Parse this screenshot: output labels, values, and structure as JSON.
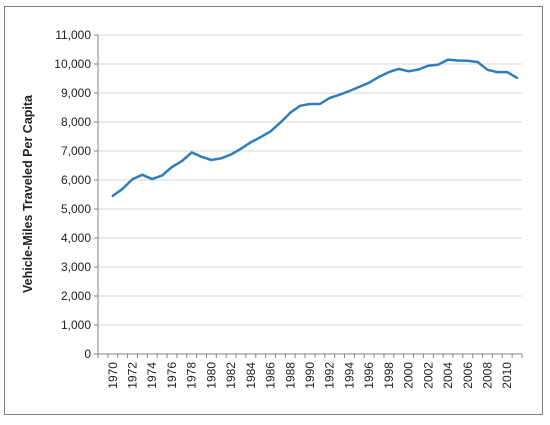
{
  "chart_data": {
    "type": "line",
    "title": "",
    "xlabel": "",
    "ylabel": "Vehicle-Miles Traveled Per Capita",
    "ylim": [
      0,
      11000
    ],
    "y_ticks": [
      "0",
      "1,000",
      "2,000",
      "3,000",
      "4,000",
      "5,000",
      "6,000",
      "7,000",
      "8,000",
      "9,000",
      "10,000",
      "11,000"
    ],
    "x_tick_labels": [
      "1970",
      "1972",
      "1974",
      "1976",
      "1978",
      "1980",
      "1982",
      "1984",
      "1986",
      "1988",
      "1990",
      "1992",
      "1994",
      "1996",
      "1998",
      "2000",
      "2002",
      "2004",
      "2006",
      "2008",
      "2010"
    ],
    "grid": "horizontal",
    "line_color": "#2e7ebf",
    "series": [
      {
        "x": [
          1970,
          1971,
          1972,
          1973,
          1974,
          1975,
          1976,
          1977,
          1978,
          1979,
          1980,
          1981,
          1982,
          1983,
          1984,
          1985,
          1986,
          1987,
          1988,
          1989,
          1990,
          1991,
          1992,
          1993,
          1994,
          1995,
          1996,
          1997,
          1998,
          1999,
          2000,
          2001,
          2002,
          2003,
          2004,
          2005,
          2006,
          2007,
          2008,
          2009,
          2010,
          2011
        ],
        "values": [
          5450,
          5700,
          6030,
          6180,
          6030,
          6160,
          6450,
          6650,
          6950,
          6800,
          6690,
          6750,
          6880,
          7080,
          7300,
          7480,
          7680,
          7980,
          8320,
          8560,
          8620,
          8620,
          8830,
          8940,
          9070,
          9210,
          9360,
          9560,
          9720,
          9830,
          9750,
          9810,
          9940,
          9980,
          10150,
          10120,
          10110,
          10070,
          9800,
          9720,
          9720,
          9520
        ]
      }
    ]
  }
}
